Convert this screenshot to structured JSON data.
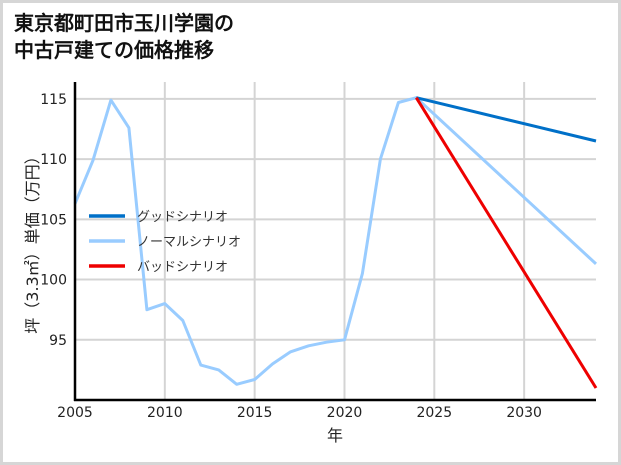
{
  "chart_data": {
    "type": "line",
    "title": "東京都町田市玉川学園の\n中古戸建ての価格推移",
    "xlabel": "年",
    "ylabel": "坪（3.3㎡）単価（万円）",
    "xlim": [
      2005,
      2034
    ],
    "ylim": [
      90,
      116.4
    ],
    "x_ticks": [
      2005,
      2010,
      2015,
      2020,
      2025,
      2030
    ],
    "y_ticks": [
      95,
      100,
      105,
      110,
      115
    ],
    "grid": true,
    "legend_position": "center-left",
    "series": [
      {
        "name": "グッドシナリオ",
        "color": "#0070c8",
        "x": [
          2024,
          2034
        ],
        "values": [
          115.1,
          111.5
        ]
      },
      {
        "name": "ノーマルシナリオ",
        "color": "#99ccff",
        "x": [
          2005,
          2006,
          2007,
          2008,
          2009,
          2010,
          2011,
          2012,
          2013,
          2014,
          2015,
          2016,
          2017,
          2018,
          2019,
          2020,
          2021,
          2022,
          2023,
          2024,
          2034
        ],
        "values": [
          106.3,
          109.9,
          114.9,
          112.6,
          97.5,
          98.0,
          96.6,
          92.9,
          92.5,
          91.3,
          91.7,
          93.0,
          94.0,
          94.5,
          94.8,
          95.0,
          100.5,
          110.0,
          114.7,
          115.1,
          101.3
        ]
      },
      {
        "name": "バッドシナリオ",
        "color": "#ee0000",
        "x": [
          2024,
          2034
        ],
        "values": [
          115.1,
          91.0
        ]
      }
    ]
  }
}
